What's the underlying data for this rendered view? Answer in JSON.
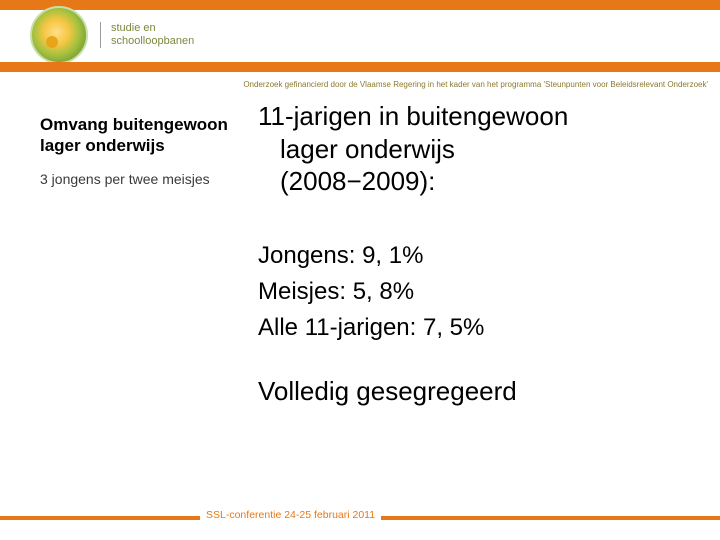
{
  "header": {
    "logo_text_line1": "studie en",
    "logo_text_line2": "schoolloopbanen",
    "bar_color": "#e77817"
  },
  "sponsor_line": "Onderzoek gefinancierd door de Vlaamse Regering in het kader van het programma 'Steunpunten voor Beleidsrelevant Onderzoek'",
  "left": {
    "title_line1": "Omvang buitengewoon",
    "title_line2": "lager onderwijs",
    "subtitle": "3 jongens per twee meisjes"
  },
  "headline": {
    "line1": "11-jarigen in buitengewoon",
    "line2": "lager onderwijs",
    "line3": "(2008−2009):"
  },
  "stats": {
    "jongens_label": "Jongens:",
    "jongens_value": "9, 1%",
    "meisjes_label": "Meisjes:",
    "meisjes_value": "5, 8%",
    "alle_label": "Alle 11-jarigen:",
    "alle_value": "7, 5%"
  },
  "segregation": "Volledig gesegregeerd",
  "footer": "SSL-conferentie 24-25 februari 2011",
  "colors": {
    "accent": "#e77817",
    "sponsor_text": "#8c7a2f",
    "logo_text": "#7a8a3f"
  },
  "typography": {
    "headline_fontsize_pt": 20,
    "stats_fontsize_pt": 18,
    "left_title_fontsize_pt": 13,
    "footer_fontsize_pt": 8
  }
}
